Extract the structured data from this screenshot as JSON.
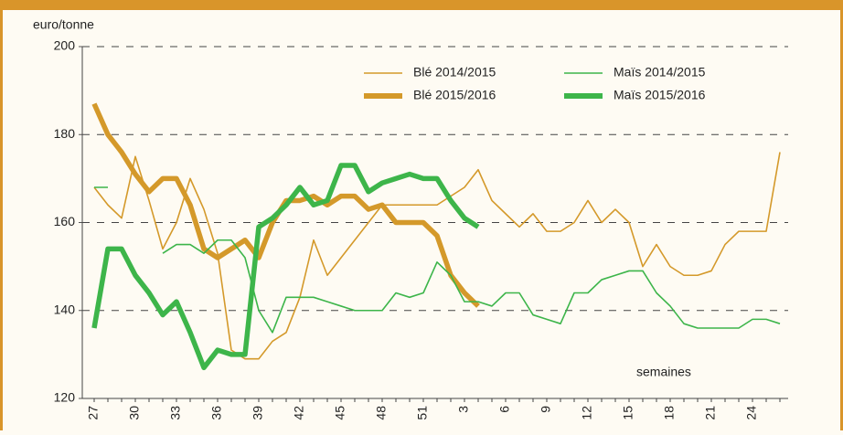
{
  "chart_data": {
    "type": "line",
    "y_axis_label": "euro/tonne",
    "x_axis_label": "semaines",
    "categories": [
      "27",
      null,
      null,
      "30",
      null,
      null,
      "33",
      null,
      null,
      "36",
      null,
      null,
      "39",
      null,
      null,
      "42",
      null,
      null,
      "45",
      null,
      null,
      "48",
      null,
      null,
      "51",
      null,
      null,
      "3",
      null,
      null,
      "6",
      null,
      null,
      "9",
      null,
      null,
      "12",
      null,
      null,
      "15",
      null,
      null,
      "18",
      null,
      null,
      "21",
      null,
      null,
      "24",
      null,
      null
    ],
    "ylim": [
      120,
      200
    ],
    "yticks": [
      120,
      140,
      160,
      180,
      200
    ],
    "grid": true,
    "legend_position": "top-right",
    "series": [
      {
        "name": "Blé 2014/2015",
        "color": "#d4992a",
        "width": "thin",
        "values": [
          168,
          164,
          161,
          175,
          165,
          154,
          160,
          170,
          163,
          153,
          131,
          129,
          129,
          133,
          135,
          143,
          156,
          148,
          152,
          156,
          160,
          164,
          164,
          164,
          164,
          164,
          166,
          168,
          172,
          165,
          162,
          159,
          162,
          158,
          158,
          160,
          165,
          160,
          163,
          160,
          150,
          155,
          150,
          148,
          148,
          149,
          155,
          158,
          158,
          158,
          176
        ]
      },
      {
        "name": "Blé 2015/2016",
        "color": "#d4992a",
        "width": "thick",
        "values": [
          187,
          180,
          176,
          171,
          167,
          170,
          170,
          164,
          154,
          152,
          154,
          156,
          152,
          160,
          165,
          165,
          166,
          164,
          166,
          166,
          163,
          164,
          160,
          160,
          160,
          157,
          148,
          144,
          141,
          null,
          null,
          null,
          null,
          null,
          null,
          null,
          null,
          null,
          null,
          null,
          null,
          null,
          null,
          null,
          null,
          null,
          null,
          null,
          null,
          null,
          null
        ]
      },
      {
        "name": "Maïs 2014/2015",
        "color": "#3db54a",
        "width": "thin",
        "values": [
          168,
          168,
          null,
          null,
          null,
          153,
          155,
          155,
          153,
          156,
          156,
          152,
          140,
          135,
          143,
          143,
          143,
          142,
          141,
          140,
          140,
          140,
          144,
          143,
          144,
          151,
          148,
          142,
          142,
          141,
          144,
          144,
          139,
          138,
          137,
          144,
          144,
          147,
          148,
          149,
          149,
          144,
          141,
          137,
          136,
          136,
          136,
          136,
          138,
          138,
          137
        ]
      },
      {
        "name": "Maïs 2015/2016",
        "color": "#3db54a",
        "width": "thick",
        "values": [
          136,
          154,
          154,
          148,
          144,
          139,
          142,
          135,
          127,
          131,
          130,
          130,
          159,
          161,
          164,
          168,
          164,
          165,
          173,
          173,
          167,
          169,
          170,
          171,
          170,
          170,
          165,
          161,
          159,
          null,
          null,
          null,
          null,
          null,
          null,
          null,
          null,
          null,
          null,
          null,
          null,
          null,
          null,
          null,
          null,
          null,
          null,
          null,
          null,
          null,
          null
        ]
      }
    ]
  }
}
